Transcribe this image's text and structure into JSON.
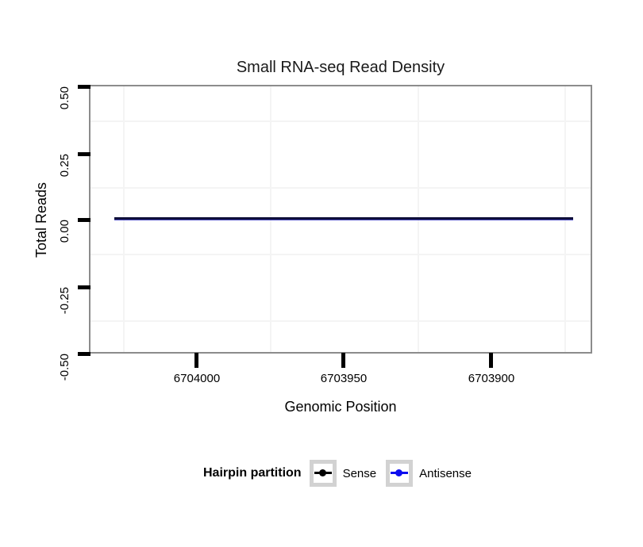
{
  "title": "Small RNA-seq Read Density",
  "axes": {
    "x": {
      "label": "Genomic Position",
      "ticks": [
        "6704000",
        "6703950",
        "6703900"
      ]
    },
    "y": {
      "label": "Total Reads",
      "ticks": [
        "0.50",
        "0.25",
        "0.00",
        "-0.25",
        "-0.50"
      ]
    }
  },
  "legend": {
    "title": "Hairpin partition",
    "items": [
      {
        "label": "Sense",
        "color": "#000000"
      },
      {
        "label": "Antisense",
        "color": "#0d0dee"
      }
    ]
  },
  "colors": {
    "sense": "#000000",
    "antisense": "#0d0dee",
    "overlapped_line": "#10103a",
    "panel_border": "#8c8c8c",
    "minor_grid": "#f4f4f4"
  },
  "chart_data": {
    "type": "line",
    "title": "Small RNA-seq Read Density",
    "xlabel": "Genomic Position",
    "ylabel": "Total Reads",
    "x_ticks": [
      6704000,
      6703950,
      6703900
    ],
    "x_axis_reversed": true,
    "xlim": [
      6704030,
      6703870
    ],
    "ylim": [
      -0.5,
      0.5
    ],
    "y_ticks": [
      0.5,
      0.25,
      0.0,
      -0.25,
      -0.5
    ],
    "grid": "minor gridlines only (midpoints between ticks), light grey on white panel",
    "legend_title": "Hairpin partition",
    "legend_position": "bottom",
    "series": [
      {
        "name": "Sense",
        "color": "#000000",
        "x": [
          6704028,
          6703872
        ],
        "y": [
          0,
          0
        ]
      },
      {
        "name": "Antisense",
        "color": "#0d0dee",
        "x": [
          6704028,
          6703872
        ],
        "y": [
          0,
          0
        ]
      }
    ]
  }
}
